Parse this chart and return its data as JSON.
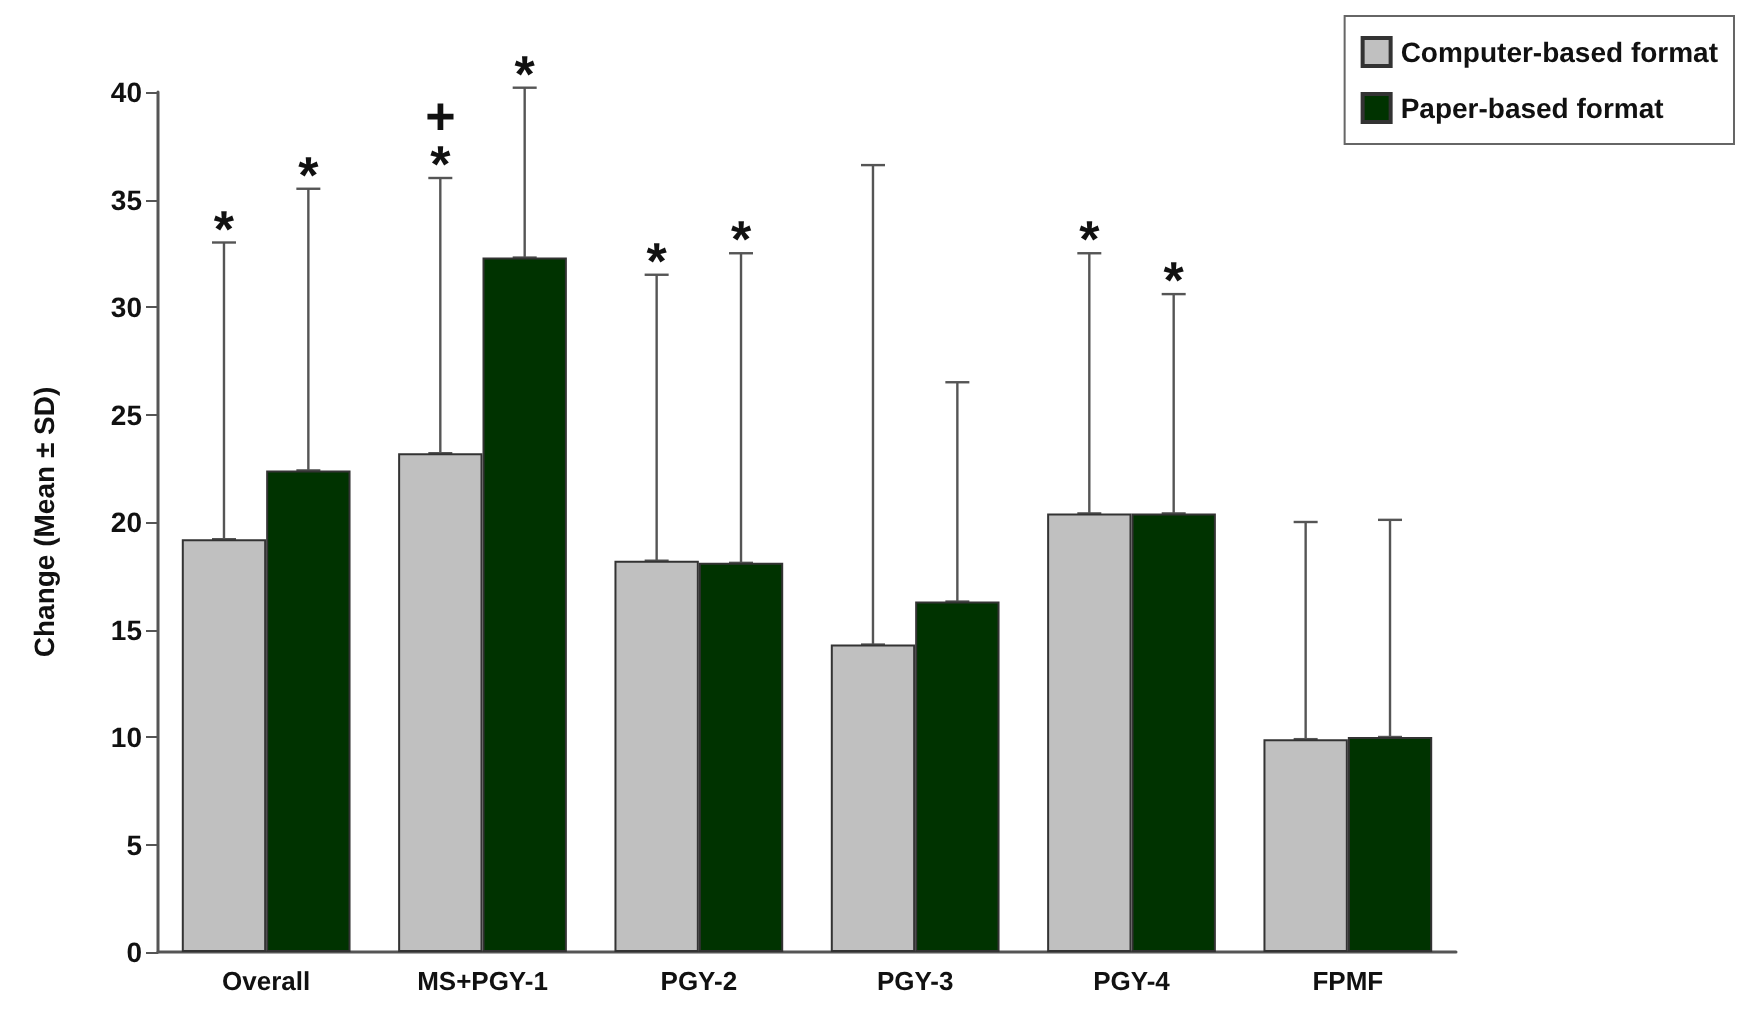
{
  "chart_data": {
    "type": "bar",
    "ylabel": "Change (Mean ± SD)",
    "categories": [
      "Overall",
      "MS+PGY-1",
      "PGY-2",
      "PGY-3",
      "PGY-4",
      "FPMF"
    ],
    "series": [
      {
        "name": "Computer-based format",
        "color": "#c0c0c0",
        "values": [
          19.2,
          23.2,
          18.2,
          14.3,
          20.4,
          9.9
        ],
        "errors": [
          [
            19.2,
            33.0
          ],
          [
            23.2,
            36.0
          ],
          [
            18.2,
            31.5
          ],
          [
            14.3,
            36.6
          ],
          [
            20.4,
            32.5
          ],
          [
            9.9,
            20.0
          ]
        ]
      },
      {
        "name": "Paper-based format",
        "color": "#003300",
        "values": [
          22.4,
          32.3,
          18.1,
          16.3,
          20.4,
          10.0
        ],
        "errors": [
          [
            22.4,
            35.5
          ],
          [
            32.3,
            40.2
          ],
          [
            18.1,
            32.5
          ],
          [
            16.3,
            26.5
          ],
          [
            20.4,
            30.6
          ],
          [
            10.0,
            20.1
          ]
        ]
      }
    ],
    "ylim": [
      0,
      40
    ],
    "yticks": [
      0,
      5,
      10,
      15,
      20,
      25,
      30,
      35,
      40
    ],
    "grid": false,
    "legend": "top right",
    "annotations": [
      "*",
      "*",
      "*",
      "+",
      "*",
      "*",
      "*",
      "*",
      "*"
    ]
  }
}
